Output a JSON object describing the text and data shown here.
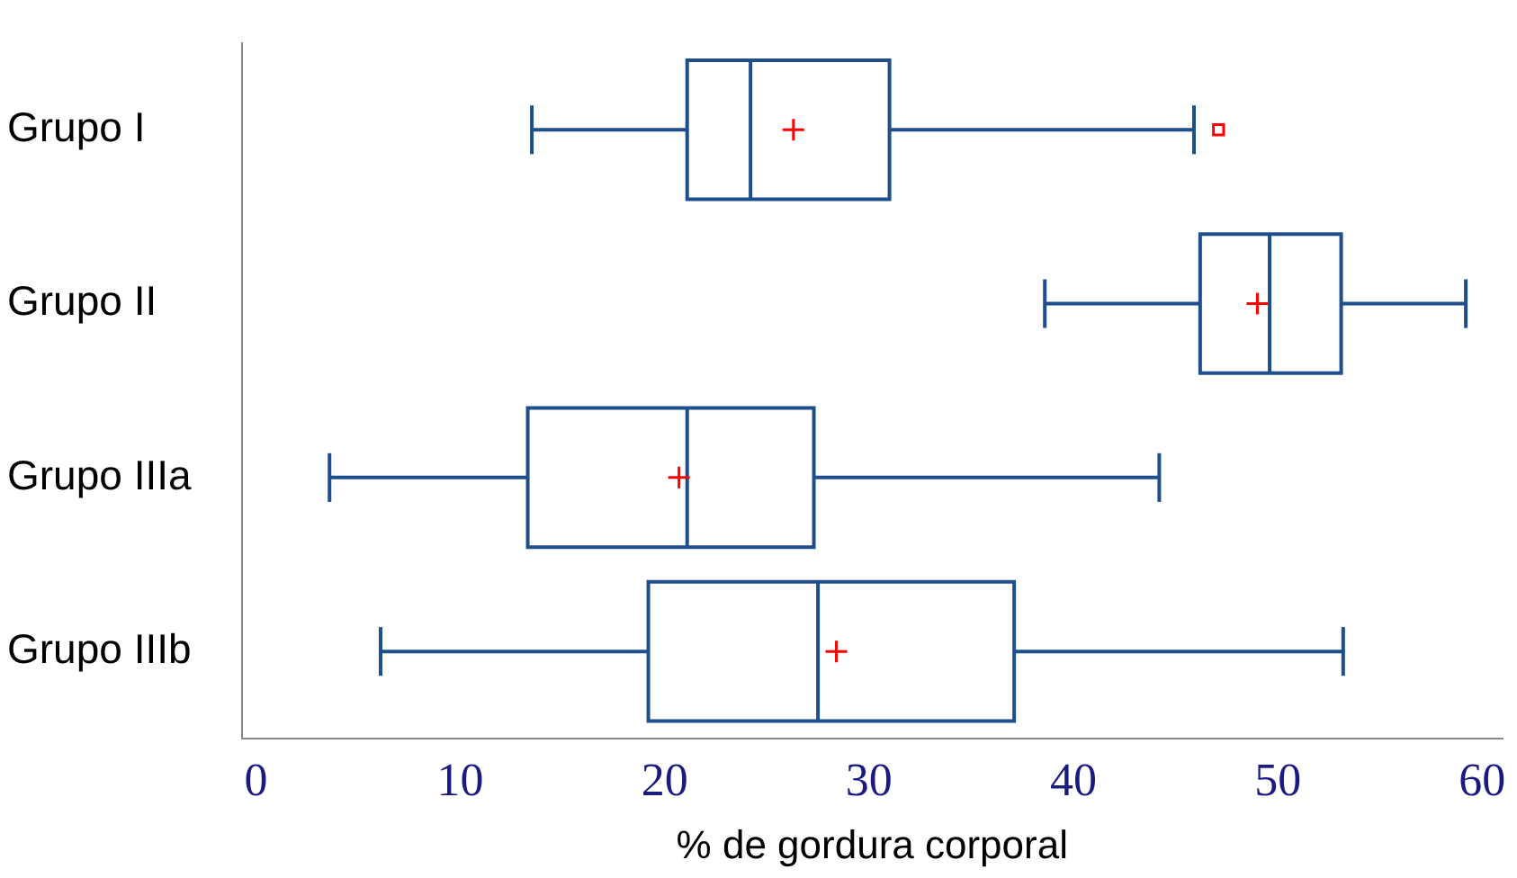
{
  "chart_data": {
    "type": "box",
    "orientation": "horizontal",
    "categories": [
      "Grupo I",
      "Grupo II",
      "Grupo IIIa",
      "Grupo IIIb"
    ],
    "series": [
      {
        "color": "#1f4e8c",
        "boxes": [
          {
            "low": 13.5,
            "q1": 21.1,
            "median": 24.2,
            "q3": 31.0,
            "high": 45.9,
            "mean": 26.3,
            "outliers": [
              47.1
            ]
          },
          {
            "low": 38.6,
            "q1": 46.2,
            "median": 49.6,
            "q3": 53.1,
            "high": 59.2,
            "mean": 49.0
          },
          {
            "low": 3.6,
            "q1": 13.3,
            "median": 21.1,
            "q3": 27.3,
            "high": 44.2,
            "mean": 20.7
          },
          {
            "low": 6.1,
            "q1": 19.2,
            "median": 27.5,
            "q3": 37.1,
            "high": 53.2,
            "mean": 28.4
          }
        ]
      }
    ],
    "xlabel": "% de gordura corporal",
    "xlim": [
      -0.7,
      61
    ],
    "xticks": [
      0,
      10,
      20,
      30,
      40,
      50,
      60
    ],
    "grid": false,
    "legend": false
  }
}
